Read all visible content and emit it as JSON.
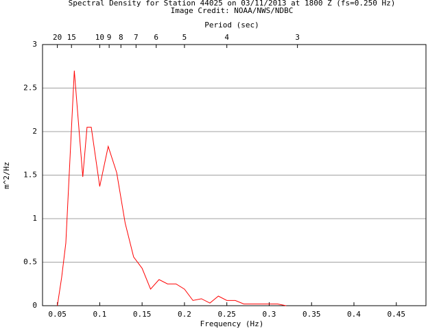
{
  "chart_data": {
    "type": "line",
    "title": "Spectral Density for Station 44025 on 03/11/2013 at 1800 Z (fs=0.250 Hz)",
    "subtitle": "Image Credit: NOAA/NWS/NDBC",
    "x2label": "Period (sec)",
    "xlabel": "Frequency (Hz)",
    "ylabel": "m^2/Hz",
    "x": [
      0.05,
      0.055,
      0.06,
      0.07,
      0.08,
      0.085,
      0.09,
      0.1,
      0.11,
      0.12,
      0.13,
      0.14,
      0.15,
      0.16,
      0.17,
      0.18,
      0.19,
      0.2,
      0.21,
      0.22,
      0.23,
      0.24,
      0.25,
      0.26,
      0.27,
      0.28,
      0.29,
      0.3,
      0.31,
      0.32
    ],
    "values": [
      0,
      0.32,
      0.72,
      2.7,
      1.48,
      2.05,
      2.05,
      1.37,
      1.83,
      1.53,
      0.95,
      0.56,
      0.43,
      0.19,
      0.3,
      0.25,
      0.25,
      0.19,
      0.06,
      0.08,
      0.03,
      0.11,
      0.06,
      0.06,
      0.02,
      0.02,
      0.02,
      0.02,
      0.02,
      0
    ],
    "color": "#ff0000",
    "xlim": [
      0.0325,
      0.485
    ],
    "ylim": [
      0,
      3
    ],
    "xticks": [
      0.05,
      0.1,
      0.15,
      0.2,
      0.25,
      0.3,
      0.35,
      0.4,
      0.45
    ],
    "yticks": [
      0,
      0.5,
      1,
      1.5,
      2,
      2.5,
      3
    ],
    "x2ticks": [
      20,
      15,
      10,
      9,
      8,
      7,
      6,
      5,
      4,
      3
    ],
    "grid": true
  }
}
